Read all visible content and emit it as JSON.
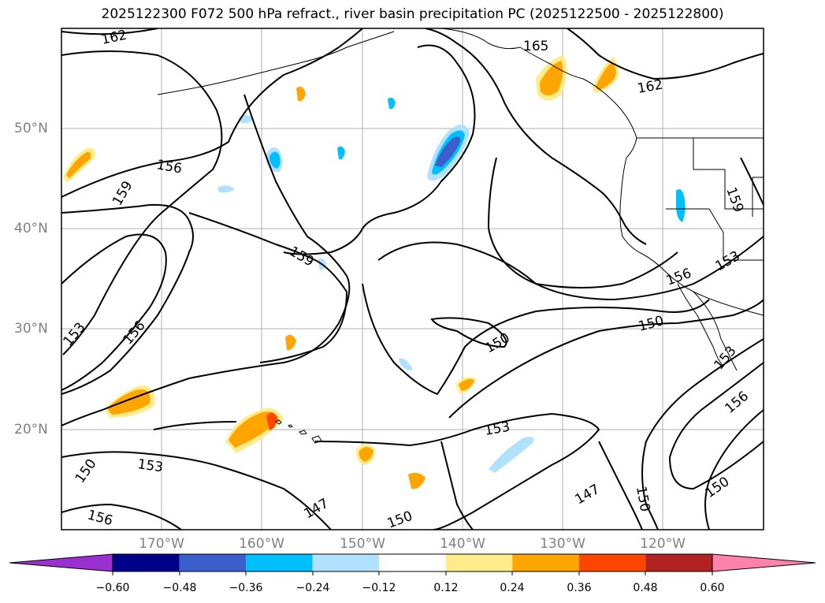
{
  "title": "2025122300 F072 500 hPa refract., river basin precipitation PC (2025122500 - 2025122800)",
  "lat_labels": [
    "50°N",
    "40°N",
    "30°N",
    "20°N"
  ],
  "lon_labels": [
    "170°W",
    "160°W",
    "150°W",
    "140°W",
    "130°W",
    "120°W"
  ],
  "contour_labels": [
    "162",
    "165",
    "162",
    "156",
    "159",
    "159",
    "159",
    "153",
    "156",
    "156",
    "153",
    "150",
    "150",
    "153",
    "156",
    "153",
    "150",
    "153",
    "156",
    "147",
    "150",
    "147",
    "150",
    "150"
  ],
  "colorbar": {
    "ticks": [
      "−0.60",
      "−0.48",
      "−0.36",
      "−0.24",
      "−0.12",
      "0.12",
      "0.24",
      "0.36",
      "0.48",
      "0.60"
    ],
    "colors": [
      "#9b30d0",
      "#00008b",
      "#3a5fcd",
      "#00bfff",
      "#b0e2ff",
      "#ffffff",
      "#ffec8b",
      "#ffa500",
      "#ff4500",
      "#b22222",
      "#ff82ab"
    ]
  }
}
